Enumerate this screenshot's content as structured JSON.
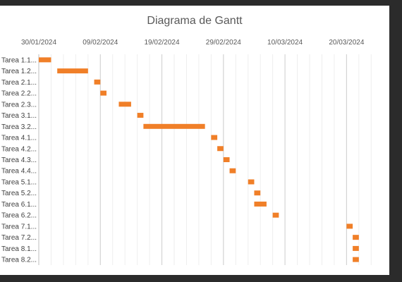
{
  "chart_data": {
    "type": "bar",
    "title": "Diagrama de Gantt",
    "x_tick_labels": [
      "30/01/2024",
      "09/02/2024",
      "19/02/2024",
      "29/02/2024",
      "10/03/2024",
      "20/03/2024"
    ],
    "x_ticks": [
      "2024-01-30",
      "2024-02-09",
      "2024-02-19",
      "2024-02-29",
      "2024-03-10",
      "2024-03-20"
    ],
    "xlim": [
      "2024-01-30",
      "2024-03-25"
    ],
    "grid": true,
    "bar_color": "#f07f28",
    "tasks": [
      {
        "label": "Tarea 1.1...",
        "start": "2024-01-30",
        "end": "2024-02-01"
      },
      {
        "label": "Tarea 1.2...",
        "start": "2024-02-02",
        "end": "2024-02-07"
      },
      {
        "label": "Tarea 2.1...",
        "start": "2024-02-08",
        "end": "2024-02-09"
      },
      {
        "label": "Tarea 2.2...",
        "start": "2024-02-09",
        "end": "2024-02-10"
      },
      {
        "label": "Tarea 2.3...",
        "start": "2024-02-12",
        "end": "2024-02-14"
      },
      {
        "label": "Tarea 3.1...",
        "start": "2024-02-15",
        "end": "2024-02-16"
      },
      {
        "label": "Tarea 3.2...",
        "start": "2024-02-16",
        "end": "2024-02-26"
      },
      {
        "label": "Tarea 4.1...",
        "start": "2024-02-27",
        "end": "2024-02-28"
      },
      {
        "label": "Tarea 4.2...",
        "start": "2024-02-28",
        "end": "2024-02-29"
      },
      {
        "label": "Tarea 4.3...",
        "start": "2024-02-29",
        "end": "2024-03-01"
      },
      {
        "label": "Tarea 4.4...",
        "start": "2024-03-01",
        "end": "2024-03-02"
      },
      {
        "label": "Tarea 5.1...",
        "start": "2024-03-04",
        "end": "2024-03-05"
      },
      {
        "label": "Tarea 5.2...",
        "start": "2024-03-05",
        "end": "2024-03-06"
      },
      {
        "label": "Tarea 6.1...",
        "start": "2024-03-05",
        "end": "2024-03-07"
      },
      {
        "label": "Tarea 6.2...",
        "start": "2024-03-08",
        "end": "2024-03-09"
      },
      {
        "label": "Tarea 7.1...",
        "start": "2024-03-20",
        "end": "2024-03-21"
      },
      {
        "label": "Tarea 7.2...",
        "start": "2024-03-21",
        "end": "2024-03-22"
      },
      {
        "label": "Tarea 8.1...",
        "start": "2024-03-21",
        "end": "2024-03-22"
      },
      {
        "label": "Tarea 8.2...",
        "start": "2024-03-21",
        "end": "2024-03-22"
      }
    ]
  }
}
